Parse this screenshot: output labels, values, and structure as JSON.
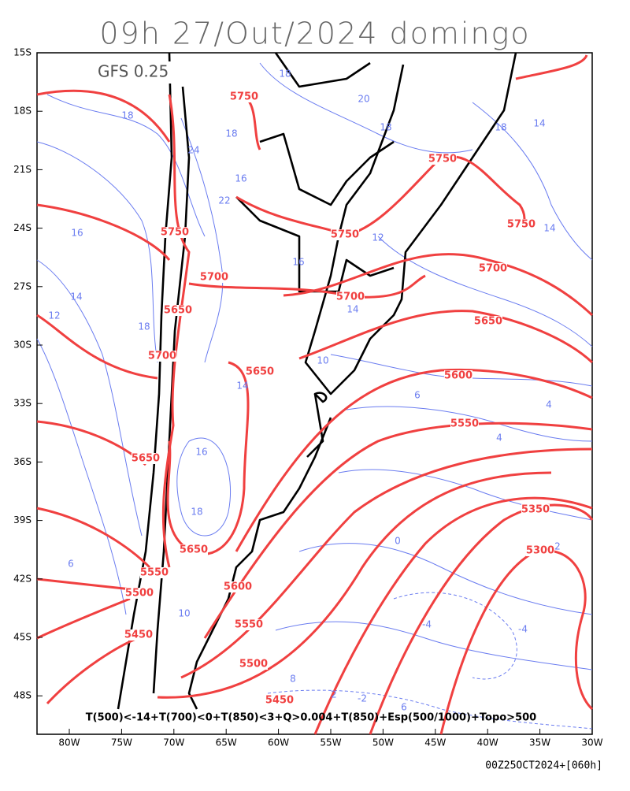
{
  "header": {
    "title": "09h 27/Out/2024 domingo",
    "model": "GFS 0.25"
  },
  "axes": {
    "lat_ticks": [
      "15S",
      "18S",
      "21S",
      "24S",
      "27S",
      "30S",
      "33S",
      "36S",
      "39S",
      "42S",
      "45S",
      "48S"
    ],
    "lon_ticks": [
      "80W",
      "75W",
      "70W",
      "65W",
      "60W",
      "55W",
      "50W",
      "45W",
      "40W",
      "35W",
      "30W"
    ]
  },
  "red_labels": [
    "5750",
    "5750",
    "5750",
    "5750",
    "5750",
    "5700",
    "5700",
    "5700",
    "5650",
    "5650",
    "5700",
    "5650",
    "5600",
    "5550",
    "5650",
    "5350",
    "5650",
    "5300",
    "5550",
    "5600",
    "5500",
    "5550",
    "5450",
    "5500",
    "5450"
  ],
  "blue_labels": [
    "18",
    "20",
    "18",
    "18",
    "14",
    "18",
    "24",
    "18",
    "16",
    "22",
    "16",
    "16",
    "12",
    "14",
    "12",
    "18",
    "14",
    "10",
    "14",
    "16",
    "18",
    "6",
    "4",
    "6",
    "4",
    "0",
    "2",
    "-4",
    "-4",
    "2",
    "-2",
    "6",
    "8",
    "10",
    "14"
  ],
  "caption": "T(500)<-14+T(700)<0+T(850)<3+Q>0.004+T(850)+Esp(500/1000)+Topo>500",
  "footer": "00Z25OCT2024+[060h]"
}
